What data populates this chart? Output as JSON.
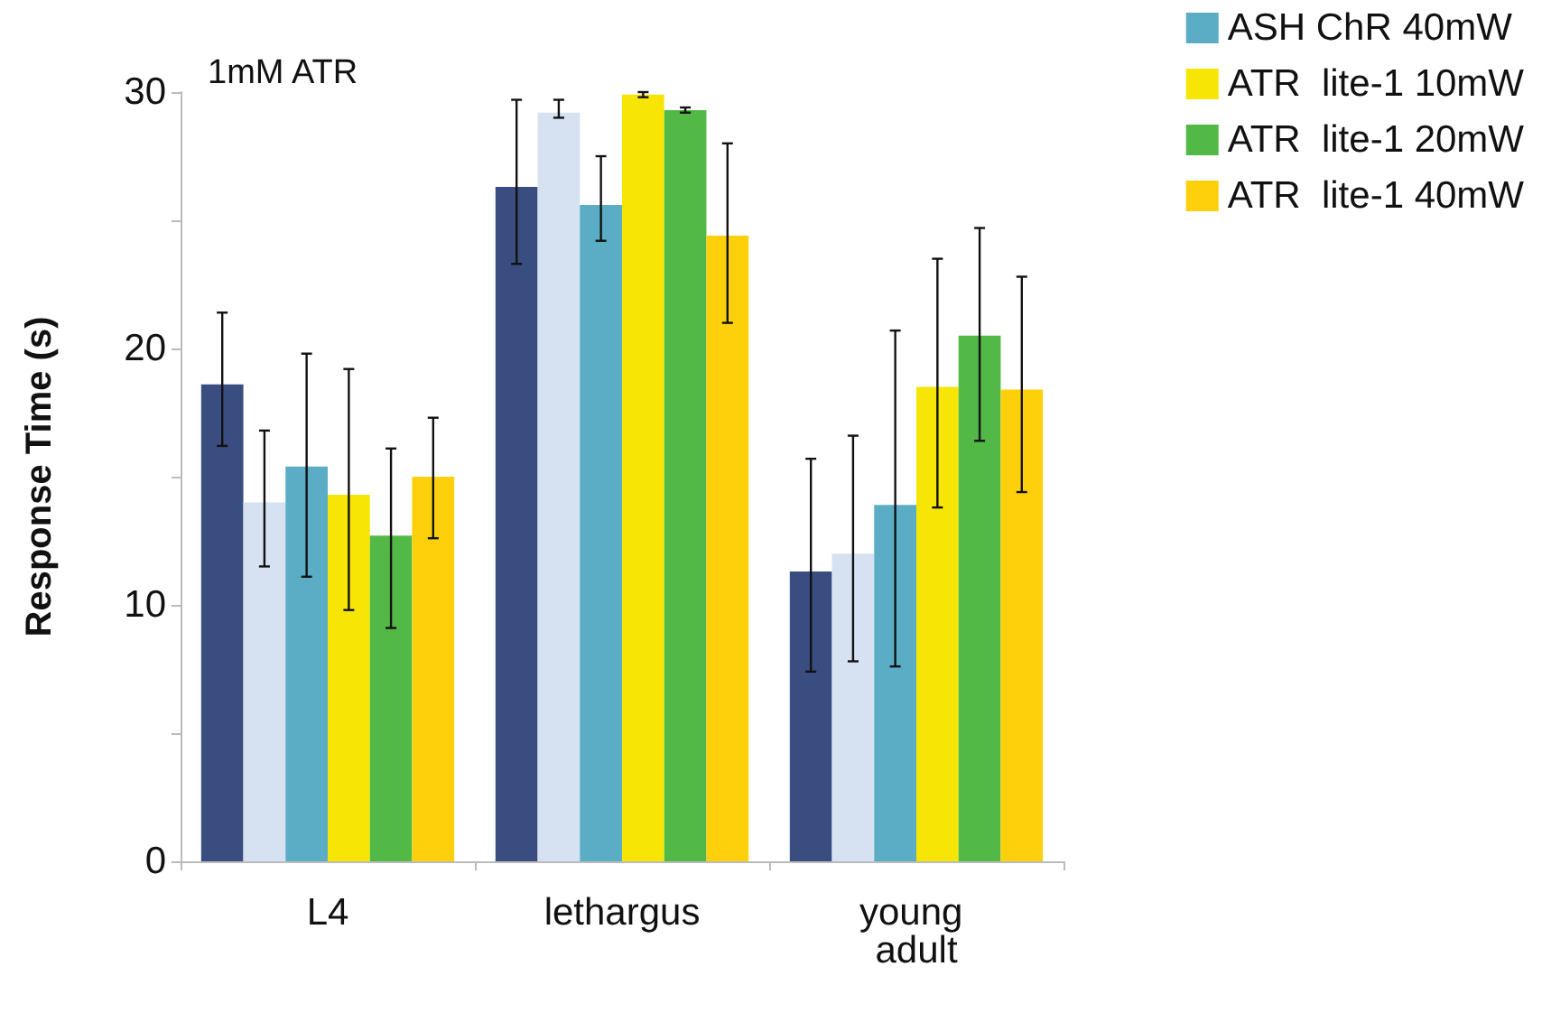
{
  "chart_data": {
    "type": "bar",
    "title": "1mM ATR",
    "ylabel": "Response Time (s)",
    "categories": [
      "L4",
      "lethargus",
      "young adult"
    ],
    "series": [
      {
        "color": "#3a4d80",
        "values": [
          18.6,
          26.3,
          11.3
        ],
        "errors": [
          [
            16.2,
            21.4
          ],
          [
            23.3,
            29.7
          ],
          [
            7.4,
            15.7
          ]
        ]
      },
      {
        "color": "#d6e2f2",
        "values": [
          14.0,
          29.2,
          12.0
        ],
        "errors": [
          [
            11.5,
            16.8
          ],
          [
            29.0,
            29.7
          ],
          [
            7.8,
            16.6
          ]
        ]
      },
      {
        "name": "ASH ChR 40mW",
        "color": "#5badc6",
        "values": [
          15.4,
          25.6,
          13.9
        ],
        "errors": [
          [
            11.1,
            19.8
          ],
          [
            24.2,
            27.5
          ],
          [
            7.6,
            20.7
          ]
        ]
      },
      {
        "name": "ATR  lite-1 10mW",
        "color": "#f7e605",
        "values": [
          14.3,
          29.9,
          18.5
        ],
        "errors": [
          [
            9.8,
            19.2
          ],
          [
            29.8,
            30.0
          ],
          [
            13.8,
            23.5
          ]
        ]
      },
      {
        "name": "ATR  lite-1 20mW",
        "color": "#52b946",
        "values": [
          12.7,
          29.3,
          20.5
        ],
        "errors": [
          [
            9.1,
            16.1
          ],
          [
            29.2,
            29.4
          ],
          [
            16.4,
            24.7
          ]
        ]
      },
      {
        "name": "ATR  lite-1 40mW",
        "color": "#fdd00b",
        "values": [
          15.0,
          24.4,
          18.4
        ],
        "errors": [
          [
            12.6,
            17.3
          ],
          [
            21.0,
            28.0
          ],
          [
            14.4,
            22.8
          ]
        ]
      }
    ],
    "ylim": [
      0,
      30
    ],
    "yticks": [
      0,
      {
        "value": 5,
        "label": null
      },
      10,
      {
        "value": 15,
        "label": null
      },
      20,
      {
        "value": 25,
        "label": null
      },
      30
    ],
    "grid": false,
    "legend": "top right"
  }
}
